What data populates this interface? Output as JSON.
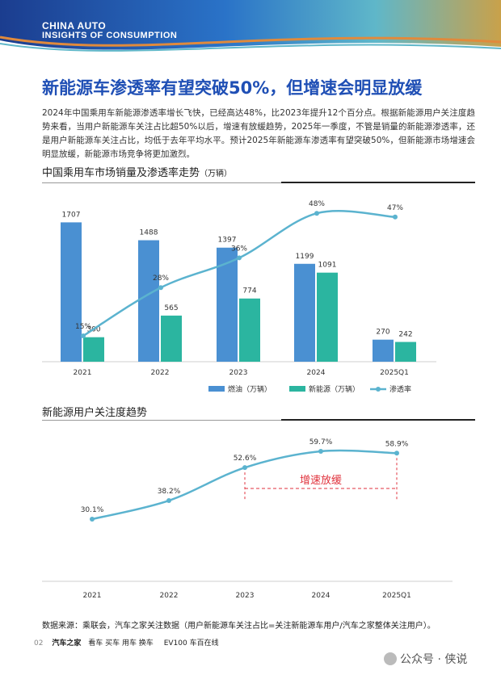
{
  "header": {
    "brand_line1": "CHINA AUTO",
    "brand_line2": "INSIGHTS OF CONSUMPTION"
  },
  "title": "新能源车渗透率有望突破50%，但增速会明显放缓",
  "intro": "2024年中国乘用车新能源渗透率增长飞快，已经高达48%，比2023年提升12个百分点。根据新能源用户关注度趋势来看，当用户新能源车关注占比超50%以后，增速有放缓趋势，2025年一季度，不管是销量的新能源渗透率，还是用户新能源车关注占比，均低于去年平均水平。预计2025年新能源车渗透率有望突破50%，但新能源市场增速会明显放缓，新能源市场竞争将更加激烈。",
  "colors": {
    "fuel": "#4a90d2",
    "nev": "#2bb5a0",
    "rate": "#5bb3cf",
    "title": "#1f4fb5",
    "annotation": "#e0323c"
  },
  "chart_data": [
    {
      "type": "bar",
      "title": "中国乘用车市场销量及渗透率走势",
      "unit": "（万辆）",
      "categories": [
        "2021",
        "2022",
        "2023",
        "2024",
        "2025Q1"
      ],
      "series": [
        {
          "name": "燃油（万辆）",
          "values": [
            1707,
            1488,
            1397,
            1199,
            270
          ],
          "labels": [
            "1707",
            "1488",
            "1397",
            "1199",
            "270"
          ]
        },
        {
          "name": "新能源（万辆）",
          "values": [
            300,
            565,
            774,
            1091,
            242
          ],
          "labels": [
            "300",
            "565",
            "774",
            "1091",
            "242"
          ]
        },
        {
          "name": "渗透率",
          "type": "line",
          "values": [
            15,
            28,
            36,
            48,
            47
          ],
          "labels": [
            "15%",
            "28%",
            "36%",
            "48%",
            "47%"
          ]
        }
      ],
      "ylim": [
        0,
        1800
      ],
      "legend": "bottom"
    },
    {
      "type": "line",
      "title": "新能源用户关注度趋势",
      "categories": [
        "2021",
        "2022",
        "2023",
        "2024",
        "2025Q1"
      ],
      "series": [
        {
          "values": [
            30.1,
            38.2,
            52.6,
            59.7,
            58.9
          ],
          "labels": [
            "30.1%",
            "38.2%",
            "52.6%",
            "59.7%",
            "58.9%"
          ]
        }
      ],
      "ylim": [
        20,
        65
      ],
      "annotation": "增速放缓"
    }
  ],
  "footer": {
    "source": "数据来源：乘联会，汽车之家关注数据（用户新能源车关注占比=关注新能源车用户/汽车之家整体关注用户）。",
    "page": "02",
    "brand1": "汽车之家",
    "nav": "看车 买车 用车 换车",
    "brand2": "EV100 车百在线",
    "watermark": "公众号 · 侠说"
  }
}
